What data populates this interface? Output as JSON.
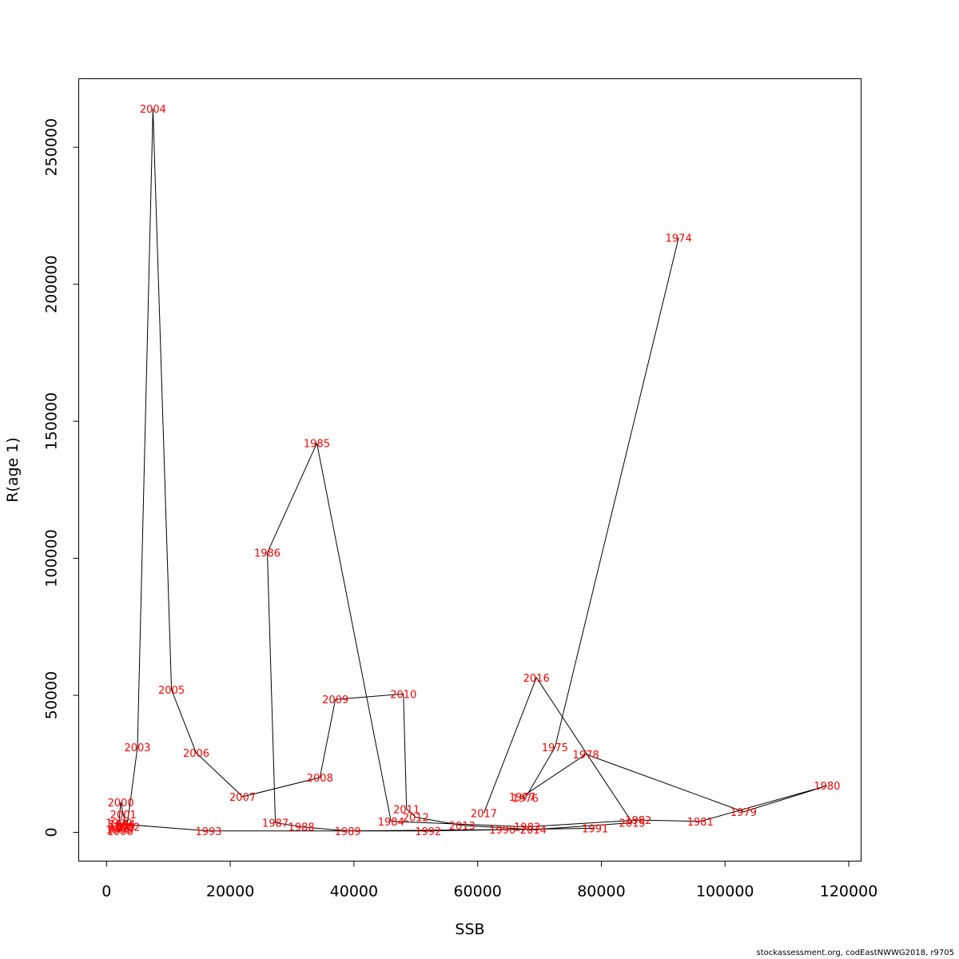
{
  "chart_data": {
    "type": "line",
    "xlabel": "SSB",
    "ylabel": "R(age 1)",
    "xlim": [
      -4500,
      122000
    ],
    "ylim": [
      -10500,
      275000
    ],
    "x_ticks": [
      0,
      20000,
      40000,
      60000,
      80000,
      100000,
      120000
    ],
    "x_tick_labels": [
      "0",
      "20000",
      "40000",
      "60000",
      "80000",
      "100000",
      "120000"
    ],
    "y_ticks": [
      0,
      50000,
      100000,
      150000,
      200000,
      250000
    ],
    "y_tick_labels": [
      "0",
      "50000",
      "100000",
      "150000",
      "200000",
      "250000"
    ],
    "grid": false,
    "line_color": "#000000",
    "label_color": "#ff0000",
    "points": [
      {
        "label": "1974",
        "x": 92500,
        "y": 217000
      },
      {
        "label": "1975",
        "x": 72500,
        "y": 31000
      },
      {
        "label": "1976",
        "x": 67700,
        "y": 12500
      },
      {
        "label": "1977",
        "x": 67200,
        "y": 13000
      },
      {
        "label": "1978",
        "x": 77500,
        "y": 28500
      },
      {
        "label": "1979",
        "x": 103000,
        "y": 7500
      },
      {
        "label": "1980",
        "x": 116500,
        "y": 17000
      },
      {
        "label": "1981",
        "x": 96000,
        "y": 4000
      },
      {
        "label": "1982",
        "x": 86000,
        "y": 4500
      },
      {
        "label": "1983",
        "x": 68000,
        "y": 2000
      },
      {
        "label": "1984",
        "x": 46000,
        "y": 4000
      },
      {
        "label": "1985",
        "x": 34000,
        "y": 142000
      },
      {
        "label": "1986",
        "x": 26000,
        "y": 102000
      },
      {
        "label": "1987",
        "x": 27300,
        "y": 3500
      },
      {
        "label": "1988",
        "x": 31500,
        "y": 2000
      },
      {
        "label": "1989",
        "x": 39000,
        "y": 500
      },
      {
        "label": "1990",
        "x": 64000,
        "y": 1000
      },
      {
        "label": "1991",
        "x": 79000,
        "y": 1500
      },
      {
        "label": "1992",
        "x": 52000,
        "y": 500
      },
      {
        "label": "1993",
        "x": 16500,
        "y": 500
      },
      {
        "label": "1994",
        "x": 2500,
        "y": 3000
      },
      {
        "label": "1995",
        "x": 2000,
        "y": 1000
      },
      {
        "label": "1996",
        "x": 2200,
        "y": 500
      },
      {
        "label": "1997",
        "x": 2600,
        "y": 1500
      },
      {
        "label": "1998",
        "x": 2400,
        "y": 2000
      },
      {
        "label": "1999",
        "x": 2000,
        "y": 3500
      },
      {
        "label": "2000",
        "x": 2300,
        "y": 11000
      },
      {
        "label": "2001",
        "x": 2700,
        "y": 6500
      },
      {
        "label": "2002",
        "x": 3300,
        "y": 2000
      },
      {
        "label": "2003",
        "x": 5000,
        "y": 31000
      },
      {
        "label": "2004",
        "x": 7500,
        "y": 264000
      },
      {
        "label": "2005",
        "x": 10500,
        "y": 52000
      },
      {
        "label": "2006",
        "x": 14500,
        "y": 29000
      },
      {
        "label": "2007",
        "x": 22000,
        "y": 13000
      },
      {
        "label": "2008",
        "x": 34500,
        "y": 20000
      },
      {
        "label": "2009",
        "x": 37000,
        "y": 48500
      },
      {
        "label": "2010",
        "x": 48000,
        "y": 50500
      },
      {
        "label": "2011",
        "x": 48500,
        "y": 8500
      },
      {
        "label": "2012",
        "x": 50000,
        "y": 5500
      },
      {
        "label": "2013",
        "x": 57500,
        "y": 2500
      },
      {
        "label": "2014",
        "x": 69000,
        "y": 1000
      },
      {
        "label": "2015",
        "x": 85000,
        "y": 3500
      },
      {
        "label": "2016",
        "x": 69500,
        "y": 56500
      },
      {
        "label": "2017",
        "x": 61000,
        "y": 7000
      }
    ]
  },
  "footer": {
    "credit": "stockassessment.org, codEastNWWG2018, r9705"
  }
}
